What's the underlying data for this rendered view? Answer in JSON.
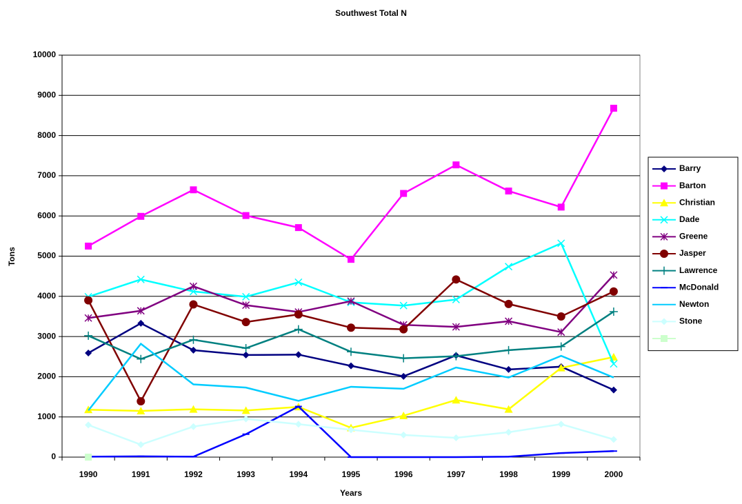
{
  "chart_data": {
    "type": "line",
    "title": "Southwest Total N",
    "x_label": "Years",
    "y_label": "Tons",
    "categories": [
      "1990",
      "1991",
      "1992",
      "1993",
      "1994",
      "1995",
      "1996",
      "1997",
      "1998",
      "1999",
      "2000"
    ],
    "ylim": [
      0,
      10000
    ],
    "yticks": [
      0,
      1000,
      2000,
      3000,
      4000,
      5000,
      6000,
      7000,
      8000,
      9000,
      10000
    ],
    "grid": true,
    "legend": "right",
    "series": [
      {
        "name": "Barry",
        "color": "#000080",
        "marker": "diamond",
        "values": [
          2590,
          3330,
          2660,
          2540,
          2550,
          2270,
          2010,
          2530,
          2180,
          2250,
          1670
        ]
      },
      {
        "name": "Barton",
        "color": "#ff00ff",
        "marker": "square",
        "values": [
          5250,
          5990,
          6650,
          6010,
          5710,
          4920,
          6560,
          7270,
          6620,
          6220,
          8680
        ]
      },
      {
        "name": "Christian",
        "color": "#ffff00",
        "marker": "triangle",
        "values": [
          1180,
          1150,
          1190,
          1160,
          1250,
          730,
          1030,
          1420,
          1190,
          2220,
          2490
        ]
      },
      {
        "name": "Dade",
        "color": "#00ffff",
        "marker": "x",
        "values": [
          3990,
          4420,
          4120,
          3990,
          4350,
          3850,
          3770,
          3920,
          4740,
          5320,
          2320
        ]
      },
      {
        "name": "Greene",
        "color": "#800080",
        "marker": "star",
        "values": [
          3460,
          3640,
          4250,
          3780,
          3610,
          3880,
          3290,
          3240,
          3380,
          3110,
          4530
        ]
      },
      {
        "name": "Jasper",
        "color": "#800000",
        "marker": "circle",
        "values": [
          3900,
          1390,
          3800,
          3360,
          3550,
          3220,
          3180,
          4420,
          3810,
          3500,
          4120
        ]
      },
      {
        "name": "Lawrence",
        "color": "#008080",
        "marker": "plus",
        "values": [
          3020,
          2440,
          2920,
          2710,
          3180,
          2620,
          2460,
          2510,
          2660,
          2750,
          3620
        ]
      },
      {
        "name": "McDonald",
        "color": "#0000ff",
        "marker": "dash",
        "values": [
          10,
          20,
          10,
          570,
          1260,
          0,
          0,
          0,
          10,
          100,
          150
        ]
      },
      {
        "name": "Newton",
        "color": "#00ccff",
        "marker": "none",
        "values": [
          1160,
          2820,
          1810,
          1730,
          1400,
          1750,
          1700,
          2230,
          1980,
          2520,
          1980
        ]
      },
      {
        "name": "Stone",
        "color": "#ccffff",
        "marker": "diamond",
        "values": [
          800,
          310,
          760,
          950,
          820,
          680,
          550,
          480,
          620,
          820,
          440
        ]
      },
      {
        "name": null,
        "color": "#ccffcc",
        "marker": "square",
        "values": [
          0,
          null,
          null,
          null,
          null,
          null,
          null,
          null,
          null,
          null,
          null
        ]
      }
    ]
  }
}
